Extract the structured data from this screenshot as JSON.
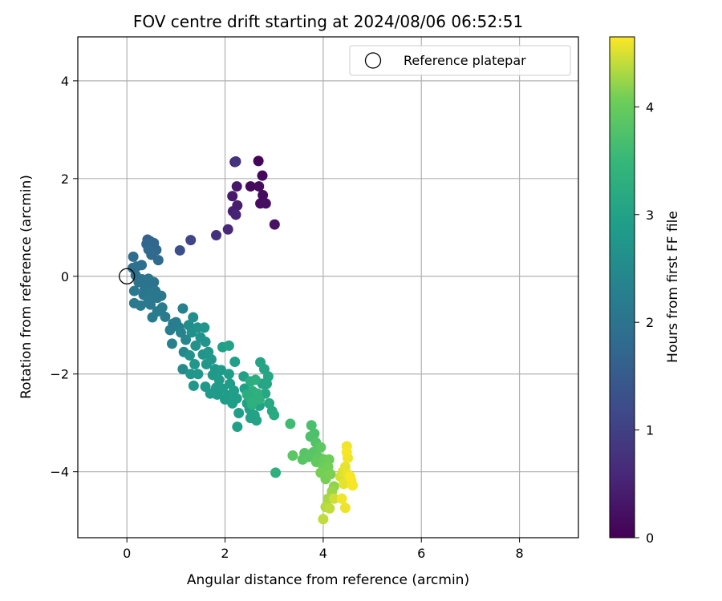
{
  "chart_data": {
    "type": "scatter",
    "title": "FOV centre drift starting at 2024/08/06 06:52:51",
    "xlabel": "Angular distance from reference (arcmin)",
    "ylabel": "Rotation from reference (arcmin)",
    "xlim": [
      -1.0,
      9.2
    ],
    "ylim": [
      -5.35,
      4.9
    ],
    "xticks": [
      0,
      2,
      4,
      6,
      8
    ],
    "xtick_labels": [
      "0",
      "2",
      "4",
      "6",
      "8"
    ],
    "yticks": [
      -4,
      -2,
      0,
      2,
      4
    ],
    "ytick_labels": [
      "−4",
      "−2",
      "0",
      "2",
      "4"
    ],
    "grid": true,
    "legend": {
      "position": "top-right",
      "entries": [
        "Reference platepar"
      ]
    },
    "reference_point": {
      "x": 0,
      "y": 0,
      "marker": "open-circle"
    },
    "colorbar": {
      "label": "Hours from first FF file",
      "range": [
        0,
        4.65
      ],
      "ticks": [
        0,
        1,
        2,
        3,
        4
      ],
      "tick_labels": [
        "0",
        "1",
        "2",
        "3",
        "4"
      ],
      "colormap": "viridis"
    },
    "points": [
      [
        2.68,
        2.36,
        0.05
      ],
      [
        2.76,
        2.06,
        0.1
      ],
      [
        2.52,
        1.84,
        0.12
      ],
      [
        2.69,
        1.84,
        0.15
      ],
      [
        2.77,
        1.66,
        0.18
      ],
      [
        2.72,
        1.49,
        0.2
      ],
      [
        2.83,
        1.49,
        0.22
      ],
      [
        3.01,
        1.06,
        0.25
      ],
      [
        2.2,
        2.34,
        0.3
      ],
      [
        2.24,
        1.84,
        0.35
      ],
      [
        2.15,
        1.64,
        0.38
      ],
      [
        2.25,
        1.45,
        0.42
      ],
      [
        2.16,
        1.33,
        0.45
      ],
      [
        2.22,
        1.26,
        0.5
      ],
      [
        2.06,
        0.96,
        0.6
      ],
      [
        1.82,
        0.84,
        0.75
      ],
      [
        2.22,
        2.35,
        0.8
      ],
      [
        1.3,
        0.74,
        1.1
      ],
      [
        1.08,
        0.53,
        1.3
      ],
      [
        0.42,
        0.75,
        1.6
      ],
      [
        0.47,
        0.72,
        1.65
      ],
      [
        0.4,
        0.66,
        1.7
      ],
      [
        0.55,
        0.68,
        1.72
      ],
      [
        0.6,
        0.54,
        1.75
      ],
      [
        0.44,
        0.55,
        1.78
      ],
      [
        0.5,
        0.44,
        1.8
      ],
      [
        0.64,
        0.33,
        1.82
      ],
      [
        0.13,
        0.4,
        1.85
      ],
      [
        0.3,
        0.23,
        1.88
      ],
      [
        0.12,
        0.17,
        1.9
      ],
      [
        0.2,
        0.2,
        1.92
      ],
      [
        0.18,
        0.02,
        1.95
      ],
      [
        0.31,
        -0.06,
        1.97
      ],
      [
        0.24,
        -0.12,
        1.98
      ],
      [
        0.38,
        -0.15,
        1.99
      ],
      [
        0.44,
        -0.05,
        2.0
      ],
      [
        0.55,
        -0.12,
        2.0
      ],
      [
        0.46,
        -0.22,
        2.02
      ],
      [
        0.36,
        -0.28,
        2.03
      ],
      [
        0.58,
        -0.3,
        2.05
      ],
      [
        0.34,
        -0.38,
        2.05
      ],
      [
        0.5,
        -0.36,
        2.07
      ],
      [
        0.62,
        -0.44,
        2.08
      ],
      [
        0.7,
        -0.4,
        2.1
      ],
      [
        0.15,
        -0.3,
        2.1
      ],
      [
        0.44,
        -0.5,
        2.12
      ],
      [
        0.48,
        -0.58,
        2.13
      ],
      [
        0.28,
        -0.6,
        2.14
      ],
      [
        0.15,
        -0.55,
        2.15
      ],
      [
        0.72,
        -0.64,
        2.16
      ],
      [
        0.62,
        -0.72,
        2.17
      ],
      [
        0.52,
        -0.84,
        2.18
      ],
      [
        0.78,
        -0.83,
        2.19
      ],
      [
        0.94,
        -0.97,
        2.2
      ],
      [
        1.0,
        -0.94,
        2.22
      ],
      [
        0.88,
        -1.1,
        2.24
      ],
      [
        1.06,
        -1.04,
        2.25
      ],
      [
        0.92,
        -1.38,
        2.27
      ],
      [
        1.14,
        -0.66,
        2.28
      ],
      [
        1.1,
        -1.15,
        2.35
      ],
      [
        1.2,
        -1.3,
        2.4
      ],
      [
        1.16,
        -1.55,
        2.45
      ],
      [
        1.14,
        -1.9,
        2.5
      ],
      [
        1.26,
        -1.0,
        2.55
      ],
      [
        1.35,
        -0.84,
        2.6
      ],
      [
        1.32,
        -1.15,
        2.62
      ],
      [
        1.4,
        -1.42,
        2.65
      ],
      [
        1.28,
        -1.62,
        2.66
      ],
      [
        1.44,
        -1.05,
        2.67
      ],
      [
        1.5,
        -1.25,
        2.68
      ],
      [
        1.58,
        -1.05,
        2.7
      ],
      [
        1.6,
        -1.34,
        2.7
      ],
      [
        1.55,
        -1.6,
        2.72
      ],
      [
        1.38,
        -1.8,
        2.73
      ],
      [
        1.3,
        -2.0,
        2.74
      ],
      [
        1.45,
        -2.0,
        2.75
      ],
      [
        1.36,
        -2.24,
        2.75
      ],
      [
        1.66,
        -1.55,
        2.76
      ],
      [
        1.62,
        -1.8,
        2.77
      ],
      [
        1.72,
        -1.7,
        2.78
      ],
      [
        1.6,
        -2.26,
        2.79
      ],
      [
        1.75,
        -2.02,
        2.8
      ],
      [
        1.8,
        -1.9,
        2.8
      ],
      [
        1.82,
        -2.28,
        2.82
      ],
      [
        1.7,
        -2.4,
        2.83
      ],
      [
        1.92,
        -1.92,
        2.84
      ],
      [
        1.88,
        -2.12,
        2.85
      ],
      [
        1.84,
        -2.42,
        2.85
      ],
      [
        1.95,
        -2.3,
        2.86
      ],
      [
        2.0,
        -2.52,
        2.87
      ],
      [
        2.08,
        -2.0,
        2.88
      ],
      [
        2.1,
        -2.2,
        2.88
      ],
      [
        2.05,
        -2.44,
        2.89
      ],
      [
        2.18,
        -2.34,
        2.9
      ],
      [
        2.15,
        -2.6,
        2.9
      ],
      [
        2.2,
        -1.75,
        2.92
      ],
      [
        2.24,
        -2.5,
        2.93
      ],
      [
        2.28,
        -2.8,
        2.94
      ],
      [
        2.25,
        -3.08,
        2.95
      ],
      [
        2.38,
        -2.05,
        2.95
      ],
      [
        2.4,
        -2.3,
        2.96
      ],
      [
        2.45,
        -2.6,
        2.97
      ],
      [
        2.5,
        -2.72,
        2.98
      ],
      [
        2.52,
        -2.9,
        2.99
      ],
      [
        2.6,
        -2.84,
        3.0
      ],
      [
        2.64,
        -2.95,
        3.0
      ],
      [
        2.7,
        -2.65,
        3.02
      ],
      [
        2.72,
        -1.76,
        3.05
      ],
      [
        2.76,
        -2.2,
        3.05
      ],
      [
        2.8,
        -1.9,
        3.08
      ],
      [
        2.85,
        -2.2,
        3.1
      ],
      [
        2.88,
        -2.05,
        3.1
      ],
      [
        2.82,
        -2.4,
        3.12
      ],
      [
        2.9,
        -2.6,
        3.14
      ],
      [
        2.96,
        -2.76,
        3.15
      ],
      [
        3.0,
        -2.84,
        3.18
      ],
      [
        1.95,
        -1.45,
        2.95
      ],
      [
        2.08,
        -1.42,
        3.0
      ],
      [
        2.52,
        -2.15,
        3.25
      ],
      [
        2.56,
        -2.35,
        3.3
      ],
      [
        2.6,
        -2.5,
        3.35
      ],
      [
        2.55,
        -2.62,
        3.3
      ],
      [
        2.66,
        -2.4,
        3.32
      ],
      [
        2.62,
        -2.12,
        3.28
      ],
      [
        2.5,
        -2.48,
        3.28
      ],
      [
        2.45,
        -2.42,
        3.26
      ],
      [
        2.58,
        -2.55,
        3.34
      ],
      [
        2.7,
        -2.52,
        3.32
      ],
      [
        3.03,
        -4.02,
        3.3
      ],
      [
        3.33,
        -3.02,
        3.6
      ],
      [
        3.76,
        -3.05,
        3.7
      ],
      [
        3.82,
        -3.22,
        3.72
      ],
      [
        3.74,
        -3.28,
        3.75
      ],
      [
        3.85,
        -3.4,
        3.8
      ],
      [
        3.62,
        -3.62,
        3.82
      ],
      [
        3.8,
        -3.6,
        3.83
      ],
      [
        3.58,
        -3.75,
        3.84
      ],
      [
        3.7,
        -3.7,
        3.85
      ],
      [
        3.38,
        -3.67,
        3.86
      ],
      [
        3.95,
        -3.5,
        3.9
      ],
      [
        3.9,
        -3.7,
        3.92
      ],
      [
        3.86,
        -3.8,
        3.95
      ],
      [
        4.02,
        -3.75,
        4.0
      ],
      [
        4.0,
        -3.9,
        4.02
      ],
      [
        4.12,
        -3.75,
        4.05
      ],
      [
        4.1,
        -3.9,
        4.08
      ],
      [
        4.05,
        -4.15,
        4.1
      ],
      [
        3.95,
        -4.02,
        4.1
      ],
      [
        4.15,
        -4.05,
        4.12
      ],
      [
        4.22,
        -4.3,
        4.2
      ],
      [
        4.18,
        -4.4,
        4.25
      ],
      [
        4.1,
        -4.55,
        4.3
      ],
      [
        4.05,
        -4.72,
        4.35
      ],
      [
        4.0,
        -4.97,
        4.4
      ],
      [
        4.13,
        -4.75,
        4.4
      ],
      [
        4.22,
        -4.55,
        4.45
      ],
      [
        4.35,
        -4.1,
        4.5
      ],
      [
        4.4,
        -4.0,
        4.52
      ],
      [
        4.45,
        -3.9,
        4.55
      ],
      [
        4.48,
        -3.48,
        4.6
      ],
      [
        4.5,
        -3.72,
        4.6
      ],
      [
        4.42,
        -4.25,
        4.55
      ],
      [
        4.5,
        -4.05,
        4.58
      ],
      [
        4.57,
        -4.18,
        4.6
      ],
      [
        4.6,
        -4.28,
        4.62
      ],
      [
        4.45,
        -4.74,
        4.58
      ],
      [
        4.38,
        -4.55,
        4.6
      ],
      [
        4.48,
        -3.6,
        4.62
      ],
      [
        4.55,
        -4.1,
        4.63
      ]
    ]
  }
}
